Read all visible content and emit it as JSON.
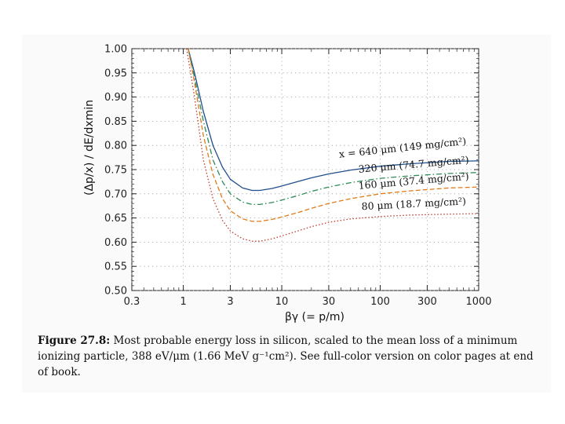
{
  "chart_data": {
    "type": "line",
    "xscale": "log",
    "xlim": [
      0.3,
      1000
    ],
    "ylim": [
      0.5,
      1.0
    ],
    "x_ticks": [
      0.3,
      1,
      3,
      10,
      30,
      100,
      300,
      1000
    ],
    "x_tick_labels": [
      "0.3",
      "1",
      "3",
      "10",
      "30",
      "100",
      "300",
      "1000"
    ],
    "y_ticks": [
      0.5,
      0.55,
      0.6,
      0.65,
      0.7,
      0.75,
      0.8,
      0.85,
      0.9,
      0.95,
      1.0
    ],
    "y_tick_labels": [
      "0.50",
      "0.55",
      "0.60",
      "0.65",
      "0.70",
      "0.75",
      "0.80",
      "0.85",
      "0.90",
      "0.95",
      "1.00"
    ],
    "xlabel": "βγ  (= p/m)",
    "ylabel": "(Δp/x) / dE/dxmin",
    "grid": true,
    "series": [
      {
        "name": "x = 640 μm (149 mg/cm2)",
        "color": "#1f4e8c",
        "style": "solid",
        "x": [
          1.12,
          1.3,
          1.6,
          2.0,
          2.5,
          3.0,
          4.0,
          5.0,
          6.0,
          8.0,
          10,
          15,
          20,
          30,
          50,
          100,
          200,
          500,
          1000
        ],
        "y": [
          1.0,
          0.95,
          0.87,
          0.8,
          0.755,
          0.73,
          0.712,
          0.707,
          0.707,
          0.711,
          0.716,
          0.726,
          0.733,
          0.741,
          0.749,
          0.757,
          0.762,
          0.767,
          0.768
        ]
      },
      {
        "name": "320 μm (74.7 mg/cm2)",
        "color": "#2e8b57",
        "style": "dashdot",
        "x": [
          1.12,
          1.3,
          1.6,
          2.0,
          2.5,
          3.0,
          4.0,
          5.0,
          6.0,
          8.0,
          10,
          15,
          20,
          30,
          50,
          100,
          200,
          500,
          1000
        ],
        "y": [
          1.0,
          0.94,
          0.85,
          0.77,
          0.725,
          0.7,
          0.683,
          0.678,
          0.678,
          0.682,
          0.687,
          0.697,
          0.705,
          0.714,
          0.723,
          0.732,
          0.737,
          0.742,
          0.744
        ]
      },
      {
        "name": "160 μm (37.4 mg/cm2)",
        "color": "#e07b18",
        "style": "dashed",
        "x": [
          1.12,
          1.3,
          1.6,
          2.0,
          2.5,
          3.0,
          4.0,
          5.0,
          6.0,
          8.0,
          10,
          15,
          20,
          30,
          50,
          100,
          200,
          500,
          1000
        ],
        "y": [
          1.0,
          0.93,
          0.82,
          0.74,
          0.69,
          0.665,
          0.648,
          0.643,
          0.643,
          0.647,
          0.652,
          0.662,
          0.67,
          0.68,
          0.69,
          0.7,
          0.706,
          0.712,
          0.714
        ]
      },
      {
        "name": "80 μm (18.7 mg/cm2)",
        "color": "#c0392b",
        "style": "dotted",
        "x": [
          1.08,
          1.3,
          1.6,
          2.0,
          2.5,
          3.0,
          4.0,
          5.0,
          6.0,
          8.0,
          10,
          15,
          20,
          30,
          50,
          100,
          200,
          500,
          1000
        ],
        "y": [
          1.0,
          0.9,
          0.77,
          0.69,
          0.645,
          0.623,
          0.607,
          0.602,
          0.602,
          0.607,
          0.613,
          0.624,
          0.632,
          0.641,
          0.648,
          0.653,
          0.656,
          0.658,
          0.659
        ]
      }
    ],
    "annotations": [
      {
        "text": "x = 640 μm (149 mg/cm²)",
        "series": 0
      },
      {
        "text": "320 μm (74.7 mg/cm²)",
        "series": 1
      },
      {
        "text": "160 μm (37.4 mg/cm²)",
        "series": 2
      },
      {
        "text": "80 μm (18.7 mg/cm²)",
        "series": 3
      }
    ]
  },
  "caption": {
    "label": "Figure 27.8:",
    "text": " Most probable energy loss in silicon, scaled to the mean loss of a minimum ionizing particle, 388 eV/μm (1.66 MeV g⁻¹cm²). See full-color version on color pages at end of book."
  }
}
